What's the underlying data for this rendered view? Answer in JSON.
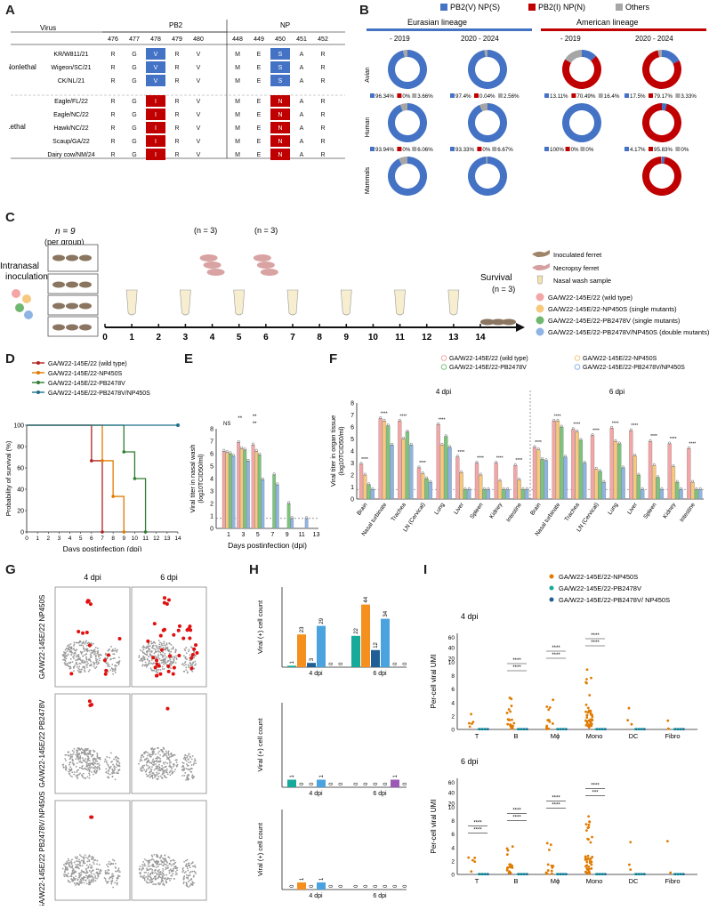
{
  "panels": {
    "A": "A",
    "B": "B",
    "C": "C",
    "D": "D",
    "E": "E",
    "F": "F",
    "G": "G",
    "H": "H",
    "I": "I"
  },
  "panelA": {
    "virus_header": "Virus",
    "pb2_header": "PB2",
    "np_header": "NP",
    "positions": [
      "476",
      "477",
      "478",
      "479",
      "480",
      "448",
      "449",
      "450",
      "451",
      "452"
    ],
    "nonlethal_label": "Nonlethal",
    "lethal_label": "Lethal",
    "rows": [
      {
        "virus": "KR/W811/21",
        "vals": [
          "R",
          "G",
          "V",
          "R",
          "V",
          "M",
          "E",
          "S",
          "A",
          "R"
        ]
      },
      {
        "virus": "Wigeon/SC/21",
        "vals": [
          "R",
          "G",
          "V",
          "R",
          "V",
          "M",
          "E",
          "S",
          "A",
          "R"
        ]
      },
      {
        "virus": "CK/NL/21",
        "vals": [
          "R",
          "G",
          "V",
          "R",
          "V",
          "M",
          "E",
          "S",
          "A",
          "R"
        ]
      },
      {
        "virus": "Eagle/FL/22",
        "vals": [
          "R",
          "G",
          "I",
          "R",
          "V",
          "M",
          "E",
          "N",
          "A",
          "R"
        ]
      },
      {
        "virus": "Eagle/NC/22",
        "vals": [
          "R",
          "G",
          "I",
          "R",
          "V",
          "M",
          "E",
          "N",
          "A",
          "R"
        ]
      },
      {
        "virus": "Hawk/NC/22",
        "vals": [
          "R",
          "G",
          "I",
          "R",
          "V",
          "M",
          "E",
          "N",
          "A",
          "R"
        ]
      },
      {
        "virus": "Scaup/GA/22",
        "vals": [
          "R",
          "G",
          "I",
          "R",
          "V",
          "M",
          "E",
          "N",
          "A",
          "R"
        ]
      },
      {
        "virus": "Dairy cow/NM/24",
        "vals": [
          "R",
          "G",
          "I",
          "R",
          "V",
          "M",
          "E",
          "N",
          "A",
          "R"
        ]
      }
    ]
  },
  "panelB": {
    "legend": [
      "PB2(V) NP(S)",
      "PB2(I) NP(N)",
      "Others"
    ],
    "colors": {
      "blue": "#4472c4",
      "red": "#c00000",
      "gray": "#a6a6a6"
    },
    "lineages": [
      "Eurasian lineage",
      "American lineage"
    ],
    "periods": [
      "- 2019",
      "2020 - 2024",
      "- 2019",
      "2020 - 2024"
    ],
    "hosts": [
      "Avian",
      "Human",
      "Mammals"
    ],
    "donuts": [
      [
        {
          "values": [
            96.34,
            0,
            3.66
          ],
          "labels": [
            "96.34%",
            "0%",
            "3.66%"
          ]
        },
        {
          "values": [
            97.4,
            0.04,
            2.56
          ],
          "labels": [
            "97.4%",
            "0.04%",
            "2.56%"
          ]
        },
        {
          "values": [
            13.11,
            70.49,
            16.4
          ],
          "labels": [
            "13.11%",
            "70.49%",
            "16.4%"
          ]
        },
        {
          "values": [
            17.5,
            79.17,
            3.33
          ],
          "labels": [
            "17.5%",
            "79.17%",
            "3.33%"
          ]
        }
      ],
      [
        {
          "values": [
            93.94,
            0,
            6.06
          ],
          "labels": [
            "93.94%",
            "0%",
            "6.06%"
          ]
        },
        {
          "values": [
            93.33,
            0,
            6.67
          ],
          "labels": [
            "93.33%",
            "0%",
            "6.67%"
          ]
        },
        {
          "values": [
            100,
            0,
            0
          ],
          "labels": [
            "100%",
            "0%",
            "0%"
          ]
        },
        {
          "values": [
            4.17,
            95.83,
            0
          ],
          "labels": [
            "4.17%",
            "95.83%",
            "0%"
          ]
        }
      ],
      [
        {
          "values": [
            92.65,
            0,
            7.35
          ],
          "labels": [
            "92.65%",
            "0%",
            "7.35%"
          ]
        },
        {
          "values": [
            98.81,
            0,
            1.19
          ],
          "labels": [
            "98.81%",
            "0%",
            "1.19%"
          ]
        },
        null,
        {
          "values": [
            2.53,
            96.93,
            0.54
          ],
          "labels": [
            "2.53%",
            "96.93%",
            "0.54%"
          ]
        }
      ]
    ]
  },
  "panelC": {
    "n9": "n = 9",
    "per_group": "(per group)",
    "intranasal": "Intranasal",
    "inoculation": "inoculation",
    "n3": "(n = 3)",
    "survival": "Survival",
    "survival_n": "(n = 3)",
    "days": [
      "0",
      "1",
      "2",
      "3",
      "4",
      "5",
      "6",
      "7",
      "8",
      "9",
      "10",
      "11",
      "12",
      "13",
      "14"
    ],
    "legend": [
      "Inoculated ferret",
      "Necropsy ferret",
      "Nasal wash sample"
    ],
    "groups": [
      {
        "label": "GA/W22-145E/22 (wild type)",
        "color": "#f4a6a6"
      },
      {
        "label": "GA/W22-145E/22-NP450S (single mutants)",
        "color": "#f7c97f"
      },
      {
        "label": "GA/W22-145E/22-PB2478V (single mutants)",
        "color": "#70b870"
      },
      {
        "label": "GA/W22-145E/22-PB2478V/NP450S (double mutants)",
        "color": "#8fb4e3"
      }
    ]
  },
  "panelD": {
    "legend": [
      "GA/W22-145E/22 (wild type)",
      "GA/W22-145E/22-NP450S",
      "GA/W22-145E/22-PB2478V",
      "GA/W22-145E/22-PB2478V/NP450S"
    ],
    "colors": [
      "#b22222",
      "#e07b00",
      "#2e7d32",
      "#1f6e8c"
    ],
    "ylabel": "Probability of survival (%)",
    "xlabel": "Days postinfection (dpi)",
    "yticks": [
      "0",
      "20",
      "40",
      "60",
      "80",
      "100"
    ],
    "xticks": [
      "0",
      "1",
      "2",
      "3",
      "4",
      "5",
      "6",
      "7",
      "8",
      "9",
      "10",
      "11",
      "12",
      "13",
      "14"
    ]
  },
  "panelE": {
    "ylabel": "Viral titer in nasal wash",
    "ylabel2": "(log10TCID50/ml)",
    "xlabel": "Days postinfection (dpi)",
    "yticks": [
      "0",
      "1",
      "2",
      "3",
      "4",
      "5",
      "6",
      "7",
      "8"
    ],
    "days": [
      "1",
      "3",
      "5",
      "7",
      "9",
      "11",
      "13"
    ],
    "sig": [
      "NS",
      "**",
      "**",
      "**"
    ]
  },
  "panelF": {
    "legend": [
      "GA/W22-145E/22 (wild type)",
      "GA/W22-145E/22-NP450S",
      "GA/W22-145E/22-PB2478V",
      "GA/W22-145E/22-PB2478V/NP450S"
    ],
    "ylabel": "Viral titer in organ tissue",
    "ylabel2": "(log10TCID50/ml)",
    "yticks": [
      "0",
      "1",
      "2",
      "3",
      "4",
      "5",
      "6",
      "7",
      "8"
    ],
    "t4": "4 dpi",
    "t6": "6 dpi",
    "organs": [
      "Brain",
      "Nasal turbinate",
      "Trachea",
      "LN (Cervical)",
      "Lung",
      "Liver",
      "Spleen",
      "Kidney",
      "Intestine"
    ]
  },
  "panelG": {
    "cols": [
      "4 dpi",
      "6 dpi"
    ],
    "rows": [
      "GA/W22-145E/22 NP450S",
      "GA/W22-145E/22 PB2478V",
      "GA/W22-145E/22 PB2478V/ NP450S"
    ]
  },
  "panelH": {
    "ylabel": "Viral (+) cell count",
    "xcats": [
      "4 dpi",
      "6 dpi"
    ],
    "top_counts": [
      "1",
      "23",
      "3",
      "29",
      "0",
      "0",
      "22",
      "44",
      "12",
      "34",
      "0",
      "0"
    ],
    "mid_counts": [
      "1",
      "0",
      "0",
      "1",
      "0",
      "0",
      "0",
      "0",
      "0",
      "0",
      "1",
      "0"
    ],
    "bot_counts": [
      "0",
      "1",
      "0",
      "1",
      "0",
      "0",
      "0",
      "0",
      "0",
      "0",
      "0",
      "0"
    ]
  },
  "panelI": {
    "legend": [
      "GA/W22-145E/22-NP450S",
      "GA/W22-145E/22-PB2478V",
      "GA/W22-145E/22-PB2478V/ NP450S"
    ],
    "t4": "4 dpi",
    "t6": "6 dpi",
    "ylabel": "Per-cell viral UMI",
    "yticks_low": [
      "0",
      "2",
      "4",
      "6",
      "8",
      "10"
    ],
    "yticks_high": [
      "20",
      "40",
      "60"
    ],
    "cells": [
      "T",
      "B",
      "Mϕ",
      "Mono",
      "DC",
      "Fibro"
    ],
    "sig4": [
      "****",
      "****",
      "****",
      "****",
      "****",
      "****"
    ],
    "sig6": [
      "****",
      "****",
      "****",
      "****",
      "****",
      "****",
      "***",
      "****"
    ]
  }
}
